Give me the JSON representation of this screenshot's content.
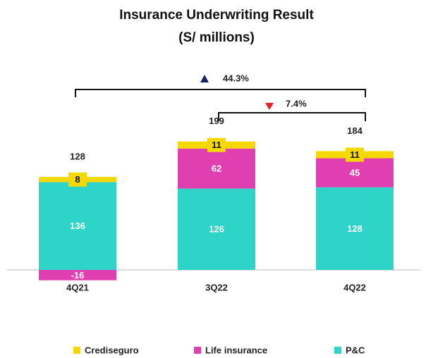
{
  "chart_data": {
    "type": "stacked-bar",
    "title": "Insurance Underwriting Result",
    "subtitle": "(S/ millions)",
    "categories": [
      "4Q21",
      "3Q22",
      "4Q22"
    ],
    "series": [
      {
        "name": "Crediseguro",
        "color": "#f5d800",
        "values": [
          8,
          11,
          11
        ]
      },
      {
        "name": "Life insurance",
        "color": "#e03fb2",
        "values": [
          -16,
          62,
          45
        ]
      },
      {
        "name": "P&C",
        "color": "#2fd4c8",
        "values": [
          136,
          126,
          128
        ]
      }
    ],
    "totals": [
      128,
      199,
      184
    ],
    "annotations": [
      "44.3%",
      "7.4%"
    ],
    "ylim": [
      -30,
      250
    ]
  }
}
